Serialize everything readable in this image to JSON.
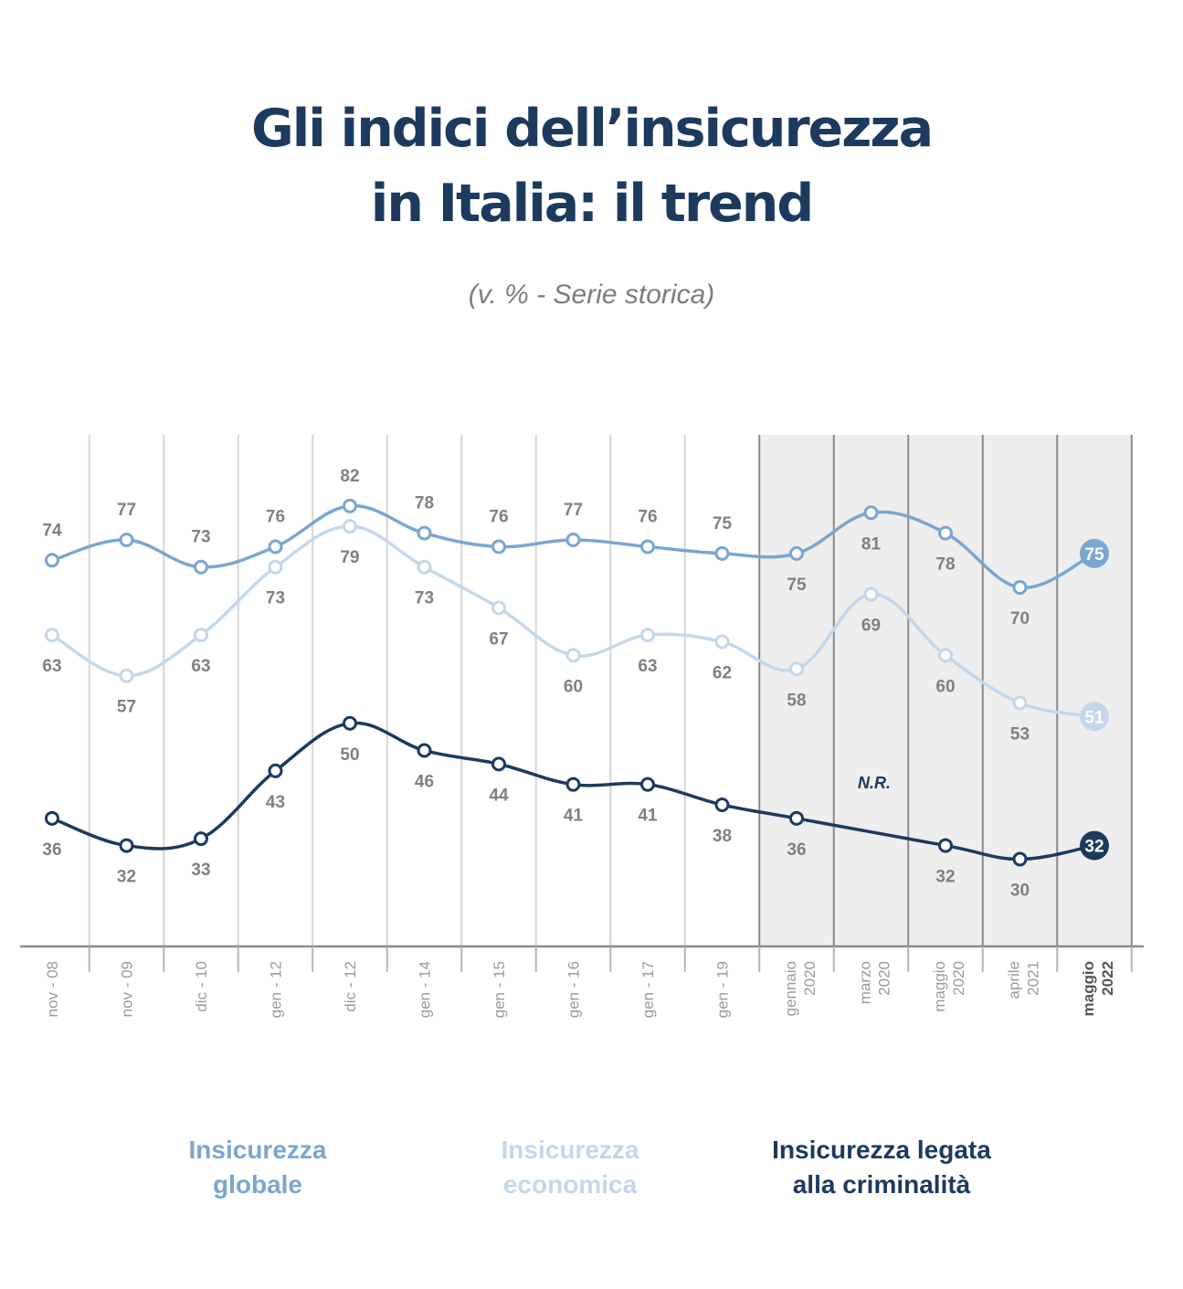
{
  "title_lines": [
    "Gli indici dell’insicurezza",
    "in Italia: il trend"
  ],
  "subtitle": "(v. % - Serie storica)",
  "annotation": "N.R.",
  "colors": {
    "global": "#7aa6d0",
    "economic": "#c4d7ea",
    "crime": "#1c3a5e",
    "value_label": "#808080",
    "shade": "#eeeeee",
    "gridline": "#d6d6d6"
  },
  "chart_data": {
    "type": "line",
    "title": "Gli indici dell’insicurezza in Italia: il trend",
    "subtitle": "(v. % - Serie storica)",
    "categories": [
      [
        "nov - 08"
      ],
      [
        "nov - 09"
      ],
      [
        "dic - 10"
      ],
      [
        "gen - 12"
      ],
      [
        "dic - 12"
      ],
      [
        "gen - 14"
      ],
      [
        "gen - 15"
      ],
      [
        "gen - 16"
      ],
      [
        "gen - 17"
      ],
      [
        "gen - 19"
      ],
      [
        "gennaio",
        "2020"
      ],
      [
        "marzo",
        "2020"
      ],
      [
        "maggio",
        "2020"
      ],
      [
        "aprile",
        "2021"
      ],
      [
        "maggio",
        "2022"
      ]
    ],
    "shaded_from_category": 10,
    "highlighted_category": 14,
    "ylim": [
      0,
      100
    ],
    "grid": true,
    "legend_position": "bottom",
    "series": [
      {
        "name": "Insicurezza globale",
        "legend_lines": [
          "Insicurezza",
          "globale"
        ],
        "color": "#7aa6d0",
        "values": [
          74,
          77,
          73,
          76,
          82,
          78,
          76,
          77,
          76,
          75,
          75,
          81,
          78,
          70,
          75
        ]
      },
      {
        "name": "Insicurezza economica",
        "legend_lines": [
          "Insicurezza",
          "economica"
        ],
        "color": "#c4d7ea",
        "values": [
          63,
          57,
          63,
          73,
          79,
          73,
          67,
          60,
          63,
          62,
          58,
          69,
          60,
          53,
          51
        ]
      },
      {
        "name": "Insicurezza legata alla criminalità",
        "legend_lines": [
          "Insicurezza legata",
          "alla criminalità"
        ],
        "color": "#1c3a5e",
        "values": [
          36,
          32,
          33,
          43,
          50,
          46,
          44,
          41,
          41,
          38,
          36,
          null,
          32,
          30,
          32
        ]
      }
    ]
  }
}
